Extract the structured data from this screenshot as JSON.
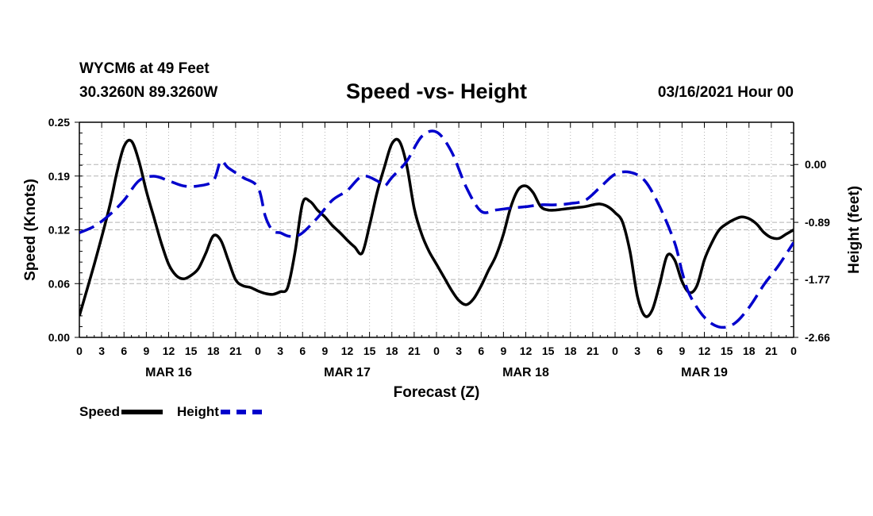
{
  "header": {
    "station": "WYCM6 at 49 Feet",
    "coords": "30.3260N 89.3260W",
    "title": "Speed -vs- Height",
    "datetime": "03/16/2021 Hour 00"
  },
  "legend": {
    "speed_label": "Speed",
    "height_label": "Height"
  },
  "colors": {
    "speed": "#000000",
    "height": "#0000cc",
    "grid": "#b4b4b4"
  },
  "chart_data": {
    "type": "line",
    "xlabel": "Forecast (Z)",
    "ylabel": "Speed (Knots)",
    "y2label": "Height (feet)",
    "xlim": [
      0,
      96
    ],
    "ylim": [
      0,
      0.25
    ],
    "y2lim": [
      -2.66,
      0.65
    ],
    "x_tick_labels": [
      "0",
      "3",
      "6",
      "9",
      "12",
      "15",
      "18",
      "21",
      "0",
      "3",
      "6",
      "9",
      "12",
      "15",
      "18",
      "21",
      "0",
      "3",
      "6",
      "9",
      "12",
      "15",
      "18",
      "21",
      "0",
      "3",
      "6",
      "9",
      "12",
      "15",
      "18",
      "21",
      "0"
    ],
    "day_labels": [
      {
        "x": 12,
        "label": "MAR 16"
      },
      {
        "x": 36,
        "label": "MAR 17"
      },
      {
        "x": 60,
        "label": "MAR 18"
      },
      {
        "x": 84,
        "label": "MAR 19"
      }
    ],
    "y_ticks": [
      {
        "value": 0.0,
        "label": "0.00"
      },
      {
        "value": 0.0625,
        "label": "0.06"
      },
      {
        "value": 0.125,
        "label": "0.12"
      },
      {
        "value": 0.1875,
        "label": "0.19"
      },
      {
        "value": 0.25,
        "label": "0.25"
      }
    ],
    "y2_ticks": [
      {
        "value": 0.0,
        "label": "0.00"
      },
      {
        "value": -0.89,
        "label": "-0.89"
      },
      {
        "value": -1.77,
        "label": "-1.77"
      },
      {
        "value": -2.66,
        "label": "-2.66"
      }
    ],
    "series": [
      {
        "name": "Speed",
        "axis": "left",
        "style": "solid",
        "x": [
          0,
          2,
          4,
          5,
          6,
          7,
          8,
          9,
          10,
          11,
          12,
          13,
          14,
          15,
          16,
          17,
          18,
          19,
          20,
          21,
          22,
          23,
          24,
          25,
          26,
          27,
          28,
          29,
          30,
          31,
          32,
          33,
          34,
          35,
          36,
          37,
          38,
          39,
          40,
          41,
          42,
          43,
          44,
          45,
          46,
          47,
          48,
          49,
          50,
          51,
          52,
          53,
          54,
          55,
          56,
          57,
          58,
          59,
          60,
          61,
          62,
          63,
          64,
          65,
          66,
          67,
          68,
          69,
          70,
          71,
          72,
          73,
          74,
          75,
          76,
          77,
          78,
          79,
          80,
          81,
          82,
          83,
          84,
          85,
          86,
          87,
          88,
          89,
          90,
          91,
          92,
          93,
          94,
          95,
          96
        ],
        "y": [
          0.025,
          0.085,
          0.15,
          0.19,
          0.222,
          0.228,
          0.205,
          0.17,
          0.14,
          0.11,
          0.085,
          0.072,
          0.068,
          0.072,
          0.08,
          0.098,
          0.118,
          0.113,
          0.09,
          0.067,
          0.06,
          0.058,
          0.054,
          0.051,
          0.05,
          0.053,
          0.058,
          0.1,
          0.156,
          0.158,
          0.148,
          0.14,
          0.13,
          0.122,
          0.113,
          0.105,
          0.098,
          0.13,
          0.168,
          0.198,
          0.225,
          0.228,
          0.2,
          0.15,
          0.12,
          0.1,
          0.085,
          0.07,
          0.055,
          0.043,
          0.038,
          0.045,
          0.06,
          0.078,
          0.095,
          0.12,
          0.152,
          0.172,
          0.176,
          0.168,
          0.152,
          0.148,
          0.148,
          0.149,
          0.15,
          0.151,
          0.152,
          0.154,
          0.155,
          0.152,
          0.145,
          0.134,
          0.1,
          0.048,
          0.025,
          0.032,
          0.062,
          0.095,
          0.09,
          0.065,
          0.052,
          0.06,
          0.09,
          0.11,
          0.125,
          0.132,
          0.137,
          0.14,
          0.138,
          0.132,
          0.122,
          0.116,
          0.115,
          0.12,
          0.125
        ]
      },
      {
        "name": "Height",
        "axis": "right",
        "style": "dashed",
        "x": [
          0,
          2,
          4,
          6,
          8,
          10,
          12,
          14,
          16,
          18,
          19,
          20,
          22,
          24,
          25,
          26,
          27,
          28,
          29,
          30,
          32,
          34,
          36,
          38,
          40,
          41,
          42,
          44,
          46,
          48,
          50,
          52,
          54,
          56,
          58,
          60,
          62,
          64,
          66,
          68,
          70,
          72,
          74,
          76,
          78,
          80,
          81,
          82,
          84,
          86,
          88,
          90,
          92,
          94,
          96
        ],
        "y": [
          -1.05,
          -0.95,
          -0.78,
          -0.55,
          -0.25,
          -0.18,
          -0.25,
          -0.33,
          -0.33,
          -0.25,
          0.05,
          -0.05,
          -0.2,
          -0.35,
          -0.8,
          -1.02,
          -1.05,
          -1.1,
          -1.1,
          -1.05,
          -0.82,
          -0.55,
          -0.4,
          -0.18,
          -0.25,
          -0.33,
          -0.2,
          0.05,
          0.43,
          0.5,
          0.2,
          -0.35,
          -0.72,
          -0.7,
          -0.67,
          -0.65,
          -0.62,
          -0.62,
          -0.6,
          -0.55,
          -0.35,
          -0.15,
          -0.12,
          -0.25,
          -0.65,
          -1.2,
          -1.65,
          -2.0,
          -2.35,
          -2.5,
          -2.45,
          -2.2,
          -1.85,
          -1.55,
          -1.2
        ]
      }
    ]
  }
}
